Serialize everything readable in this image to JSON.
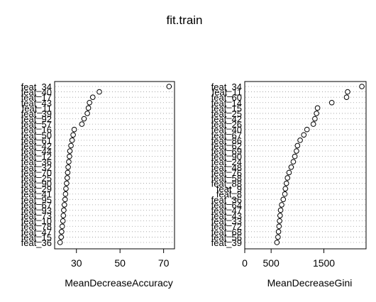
{
  "chart_data": {
    "title": "fit.train",
    "type": "scatter",
    "panels": [
      {
        "xlabel": "MeanDecreaseAccuracy",
        "xlim": [
          20,
          75
        ],
        "xticks": [
          30,
          50,
          70
        ],
        "xtick_labels": [
          "30",
          "50",
          "70"
        ],
        "features": [
          "feat_34",
          "feat_40",
          "feat_17",
          "feat_43",
          "feat_11",
          "feat_39",
          "feat_92",
          "feat_57",
          "feat_16",
          "feat_50",
          "feat_61",
          "feat_42",
          "feat_44",
          "feat_12",
          "feat_36",
          "feat_32",
          "feat_70",
          "feat_25",
          "feat_90",
          "feat_29",
          "feat_41",
          "feat_95",
          "feat_67",
          "feat_93",
          "feat_73",
          "feat_10",
          "feat_78",
          "feat_47",
          "feat_15",
          "feat_36"
        ],
        "values": [
          72.5,
          40.5,
          37.5,
          36.0,
          35.5,
          35.0,
          33.5,
          32.5,
          29.0,
          28.5,
          28.0,
          27.5,
          27.0,
          26.8,
          26.5,
          26.2,
          26.0,
          25.8,
          25.5,
          25.2,
          25.0,
          24.8,
          24.5,
          24.2,
          24.0,
          23.8,
          23.5,
          23.2,
          23.0,
          22.5
        ]
      },
      {
        "xlabel": "MeanDecreaseGini",
        "xlim": [
          0,
          2300
        ],
        "xticks": [
          0,
          500,
          1500
        ],
        "xtick_labels": [
          "0",
          "500",
          "1500"
        ],
        "features": [
          "feat_34",
          "feat_11",
          "feat_60",
          "feat_14",
          "feat_15",
          "feat_25",
          "feat_42",
          "feat_26",
          "feat_40",
          "feat_67",
          "feat_86",
          "feat_62",
          "feat_69",
          "feat_90",
          "feat_24",
          "feat_48",
          "feat_76",
          "feat_58",
          "feat_88",
          "feat_9",
          "feat_8",
          "feat_36",
          "feat_64",
          "feat_47",
          "feat_43",
          "feat_33",
          "feat_72",
          "feat_68",
          "feat_56",
          "feat_39"
        ],
        "values": [
          2220,
          1950,
          1930,
          1650,
          1380,
          1360,
          1330,
          1300,
          1180,
          1120,
          1050,
          1000,
          980,
          950,
          920,
          880,
          840,
          810,
          790,
          770,
          760,
          730,
          700,
          680,
          670,
          660,
          650,
          640,
          630,
          610
        ]
      }
    ]
  }
}
